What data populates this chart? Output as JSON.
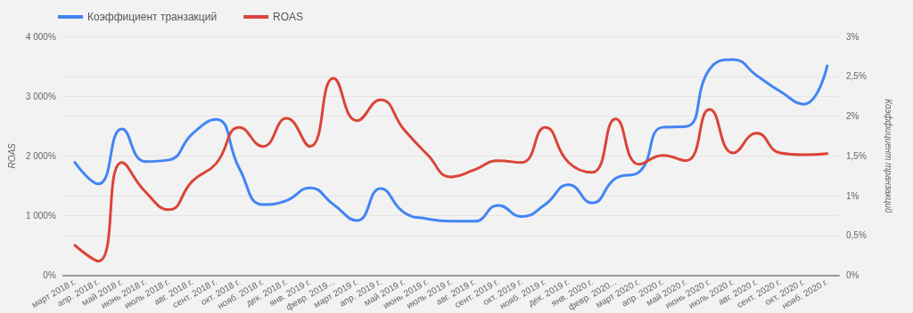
{
  "chart_data": {
    "type": "line",
    "categories": [
      "март 2018 г.",
      "апр. 2018 г.",
      "май 2018 г.",
      "июнь 2018 г.",
      "июль 2018 г.",
      "авг. 2018 г.",
      "сент. 2018 г.",
      "окт. 2018 г.",
      "нояб. 2018 г.",
      "дек. 2018 г.",
      "янв. 2019 г.",
      "февр. 2019...",
      "март 2019 г.",
      "апр. 2019 г.",
      "май 2019 г.",
      "июнь 2019 г.",
      "июль 2019 г.",
      "авг. 2019 г.",
      "сент. 2019 г.",
      "окт. 2019 г.",
      "нояб. 2019 г.",
      "дек. 2019 г.",
      "янв. 2020 г.",
      "февр. 2020...",
      "март 2020 г.",
      "апр. 2020 г.",
      "май 2020 г.",
      "июнь 2020 г.",
      "июль 2020 г.",
      "авг. 2020 г.",
      "сент. 2020 г.",
      "окт. 2020 г.",
      "нояб. 2020 г."
    ],
    "series": [
      {
        "name": "Коэффициент транзакций",
        "color": "#4285f4",
        "axis": "y2",
        "values": [
          1.42,
          1.15,
          1.84,
          1.43,
          1.45,
          1.78,
          1.96,
          1.34,
          0.89,
          0.94,
          1.1,
          0.89,
          0.69,
          1.09,
          0.79,
          0.71,
          0.68,
          0.68,
          0.88,
          0.74,
          0.89,
          1.14,
          0.91,
          1.22,
          1.3,
          1.86,
          1.87,
          2.59,
          2.71,
          2.51,
          2.31,
          2.15,
          2.63
        ]
      },
      {
        "name": "ROAS",
        "color": "#db4437",
        "values": [
          505,
          240,
          1890,
          1400,
          1100,
          1580,
          1870,
          2480,
          2160,
          2630,
          2160,
          3300,
          2590,
          2940,
          2440,
          2020,
          1650,
          1770,
          1920,
          1890,
          2480,
          1890,
          1725,
          2620,
          1860,
          2010,
          1920,
          2780,
          2050,
          2380,
          2050,
          2020,
          2040
        ]
      }
    ],
    "ylabel": "ROAS",
    "y2label": "Коэффициент транзакций",
    "ylim": [
      0,
      4000
    ],
    "yticks": [
      {
        "value": 0,
        "label": "0%"
      },
      {
        "value": 1000,
        "label": "1 000%"
      },
      {
        "value": 2000,
        "label": "2 000%"
      },
      {
        "value": 3000,
        "label": "3 000%"
      },
      {
        "value": 4000,
        "label": "4 000%"
      }
    ],
    "y2lim": [
      0,
      3
    ],
    "y2ticks": [
      {
        "value": 0,
        "label": "0%"
      },
      {
        "value": 0.5,
        "label": "0,5%"
      },
      {
        "value": 1,
        "label": "1%"
      },
      {
        "value": 1.5,
        "label": "1,5%"
      },
      {
        "value": 2,
        "label": "2%"
      },
      {
        "value": 2.5,
        "label": "2,5%"
      },
      {
        "value": 3,
        "label": "3%"
      }
    ],
    "grid": true,
    "legend": "top left",
    "marker": "none",
    "line_style": "solid"
  }
}
